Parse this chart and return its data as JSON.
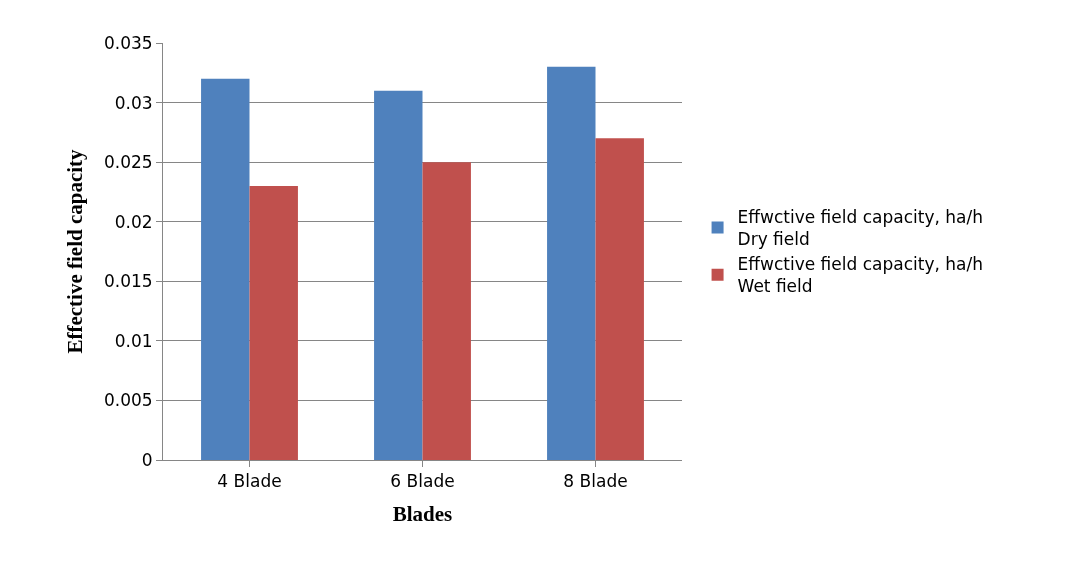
{
  "chart_data": {
    "type": "bar",
    "xlabel": "Blades",
    "ylabel": "Effective field capacity",
    "categories": [
      "4 Blade",
      "6 Blade",
      "8 Blade"
    ],
    "series": [
      {
        "name": "Effwctive field capacity, ha/h\nDry field",
        "color": "#4f81bd",
        "values": [
          0.032,
          0.031,
          0.033
        ]
      },
      {
        "name": "Effwctive field capacity, ha/h\nWet field",
        "color": "#c0504d",
        "values": [
          0.023,
          0.025,
          0.027
        ]
      }
    ],
    "ylim": [
      0,
      0.035
    ],
    "yticks": [
      0,
      0.005,
      0.01,
      0.015,
      0.02,
      0.025,
      0.03,
      0.035
    ],
    "grid": "y",
    "legend": "right"
  }
}
